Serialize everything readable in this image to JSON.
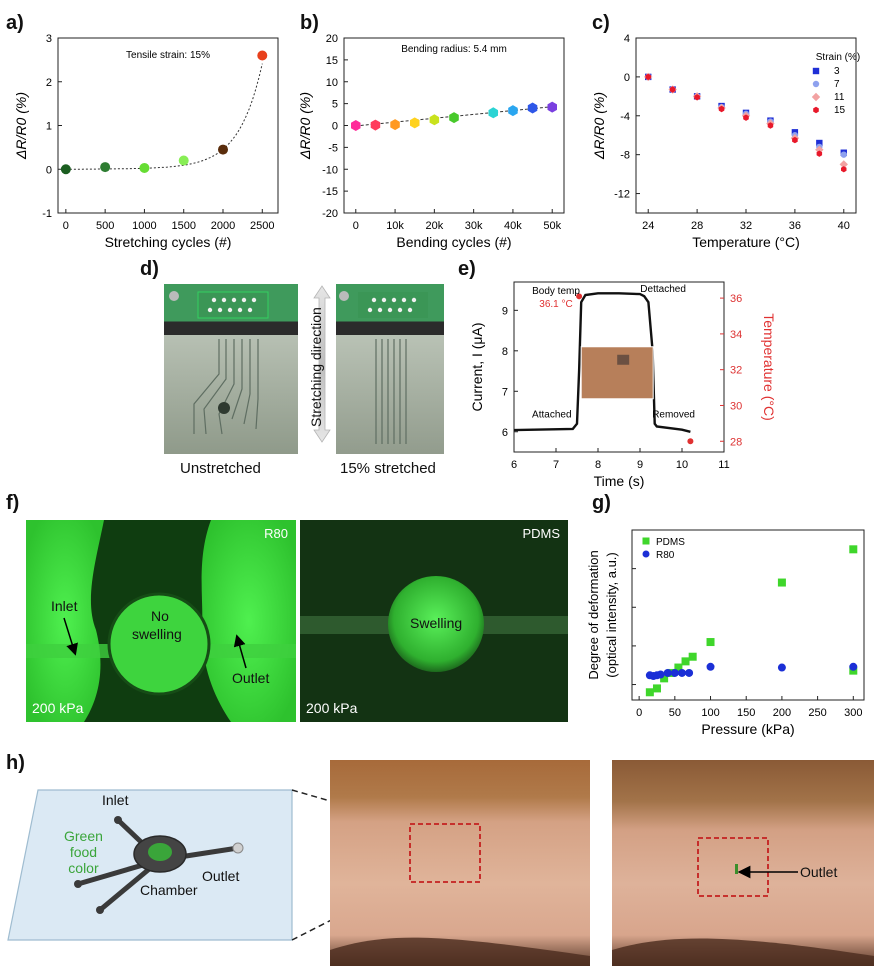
{
  "panels": {
    "a": {
      "letter": "a)"
    },
    "b": {
      "letter": "b)"
    },
    "c": {
      "letter": "c)"
    },
    "d": {
      "letter": "d)",
      "captions": [
        "Unstretched",
        "15% stretched"
      ],
      "arrow_label": "Stretching direction"
    },
    "e": {
      "letter": "e)"
    },
    "f": {
      "letter": "f)",
      "left_tag": "R80",
      "right_tag": "PDMS",
      "pressure_left": "200 kPa",
      "pressure_right": "200 kPa",
      "inlet": "Inlet",
      "outlet": "Outlet",
      "no_swelling_1": "No",
      "no_swelling_2": "swelling",
      "swelling": "Swelling"
    },
    "g": {
      "letter": "g)"
    },
    "h": {
      "letter": "h)",
      "inlet": "Inlet",
      "food_1": "Green",
      "food_2": "food",
      "food_3": "color",
      "chamber": "Chamber",
      "outlet": "Outlet",
      "outlet_right": "Outlet"
    }
  },
  "colors": {
    "green_photo": "#39d43a",
    "accent_red": "#e03131"
  },
  "chart_data": [
    {
      "id": "a",
      "type": "scatter",
      "annotation": "Tensile strain: 15%",
      "xlabel": "Stretching cycles (#)",
      "ylabel": "ΔR/R0 (%)",
      "xlim": [
        -100,
        2700
      ],
      "ylim": [
        -1,
        3
      ],
      "xticks": [
        "0",
        "500",
        "1000",
        "1500",
        "2000",
        "2500"
      ],
      "yticks": [
        "-1",
        "0",
        "1",
        "2",
        "3"
      ],
      "x": [
        0,
        500,
        1000,
        1500,
        2000,
        2500
      ],
      "y": [
        0.0,
        0.05,
        0.03,
        0.2,
        0.45,
        2.6
      ],
      "point_colors": [
        "#1b5e20",
        "#2e7d32",
        "#66dd33",
        "#88ee55",
        "#5a2d0c",
        "#e8401c"
      ]
    },
    {
      "id": "b",
      "type": "scatter",
      "annotation": "Bending radius: 5.4 mm",
      "xlabel": "Bending cycles (#)",
      "ylabel": "ΔR/R0 (%)",
      "xlim": [
        -3000,
        53000
      ],
      "ylim": [
        -20,
        20
      ],
      "xticks": [
        "0",
        "10k",
        "20k",
        "30k",
        "40k",
        "50k"
      ],
      "yticks": [
        "-20",
        "-15",
        "-10",
        "-5",
        "0",
        "5",
        "10",
        "15",
        "20"
      ],
      "x": [
        0,
        5000,
        10000,
        15000,
        20000,
        25000,
        35000,
        40000,
        45000,
        50000
      ],
      "y": [
        0.0,
        0.1,
        0.2,
        0.6,
        1.3,
        1.8,
        2.9,
        3.4,
        4.0,
        4.2
      ],
      "point_colors": [
        "#ff2a9a",
        "#ff3b5c",
        "#ff9922",
        "#ffd21f",
        "#c9e21d",
        "#48c92b",
        "#2bd3d3",
        "#2aa6f0",
        "#2e57e8",
        "#7a3fe0"
      ]
    },
    {
      "id": "c",
      "type": "scatter",
      "xlabel": "Temperature (°C)",
      "ylabel": "ΔR/R0 (%)",
      "xlim": [
        23,
        41
      ],
      "ylim": [
        -14,
        4
      ],
      "xticks": [
        "24",
        "28",
        "32",
        "36",
        "40"
      ],
      "yticks": [
        "-12",
        "-8",
        "-4",
        "0",
        "4"
      ],
      "legend_title": "Strain (%)",
      "x": [
        24,
        26,
        28,
        30,
        32,
        34,
        36,
        38,
        40
      ],
      "series": [
        {
          "name": "3",
          "color": "#1f2fd6",
          "marker": "square",
          "values": [
            0.0,
            -1.3,
            -2.0,
            -3.0,
            -3.7,
            -4.5,
            -5.7,
            -6.8,
            -7.8
          ]
        },
        {
          "name": "7",
          "color": "#8ea1ee",
          "marker": "circle",
          "values": [
            0.0,
            -1.3,
            -2.0,
            -3.1,
            -3.8,
            -4.6,
            -6.0,
            -7.2,
            -8.0
          ]
        },
        {
          "name": "11",
          "color": "#f2a2a2",
          "marker": "diamond",
          "values": [
            0.0,
            -1.3,
            -2.0,
            -3.2,
            -4.0,
            -4.8,
            -6.3,
            -7.5,
            -9.0
          ]
        },
        {
          "name": "15",
          "color": "#e8182a",
          "marker": "hexagon",
          "values": [
            0.0,
            -1.3,
            -2.1,
            -3.3,
            -4.2,
            -5.0,
            -6.5,
            -7.9,
            -9.5
          ]
        }
      ]
    },
    {
      "id": "e",
      "type": "line",
      "xlabel": "Time (s)",
      "ylabel": "Current, I (μA)",
      "ylabel_right": "Temperature (°C)",
      "xlim": [
        6,
        11
      ],
      "ylim": [
        5.5,
        9.7
      ],
      "ylim_right": [
        27.4,
        36.9
      ],
      "xticks": [
        "6",
        "7",
        "8",
        "9",
        "10",
        "11"
      ],
      "yticks": [
        "6",
        "7",
        "8",
        "9"
      ],
      "yticks_right": [
        "28",
        "30",
        "32",
        "34",
        "36"
      ],
      "series": [
        {
          "name": "Current",
          "x": [
            6.0,
            7.4,
            7.5,
            7.55,
            7.6,
            7.7,
            8.0,
            8.5,
            9.0,
            9.1,
            9.2,
            9.3,
            9.35,
            9.4,
            10.0,
            10.2
          ],
          "values": [
            6.04,
            6.07,
            6.2,
            7.5,
            9.2,
            9.38,
            9.42,
            9.42,
            9.4,
            9.35,
            9.2,
            8.0,
            6.2,
            6.13,
            6.05,
            6.0
          ]
        }
      ],
      "temp_points": [
        {
          "x": 7.55,
          "y": 36.1
        },
        {
          "x": 10.2,
          "y": 28.0
        }
      ],
      "annotations": [
        "Body temp",
        "36.1 °C",
        "Dettached",
        "Attached",
        "Removed"
      ]
    },
    {
      "id": "g",
      "type": "scatter",
      "xlabel": "Pressure (kPa)",
      "ylabel": "Degree of deformation",
      "ylabel2": "(optical intensity, a.u.)",
      "xlim": [
        -10,
        315
      ],
      "ylim": [
        30,
        250
      ],
      "xticks": [
        "0",
        "50",
        "100",
        "150",
        "200",
        "250",
        "300"
      ],
      "series": [
        {
          "name": "PDMS",
          "color": "#3fd62b",
          "marker": "square",
          "x": [
            15,
            25,
            35,
            45,
            55,
            65,
            75,
            100,
            200,
            300,
            300
          ],
          "values": [
            40,
            45,
            58,
            65,
            72,
            80,
            86,
            105,
            182,
            225,
            68
          ]
        },
        {
          "name": "R80",
          "color": "#1b2fd6",
          "marker": "circle",
          "x": [
            15,
            20,
            25,
            30,
            40,
            50,
            60,
            70,
            100,
            200,
            300
          ],
          "values": [
            62,
            61,
            62,
            63,
            65,
            65,
            65,
            65,
            73,
            72,
            73
          ]
        }
      ]
    }
  ]
}
